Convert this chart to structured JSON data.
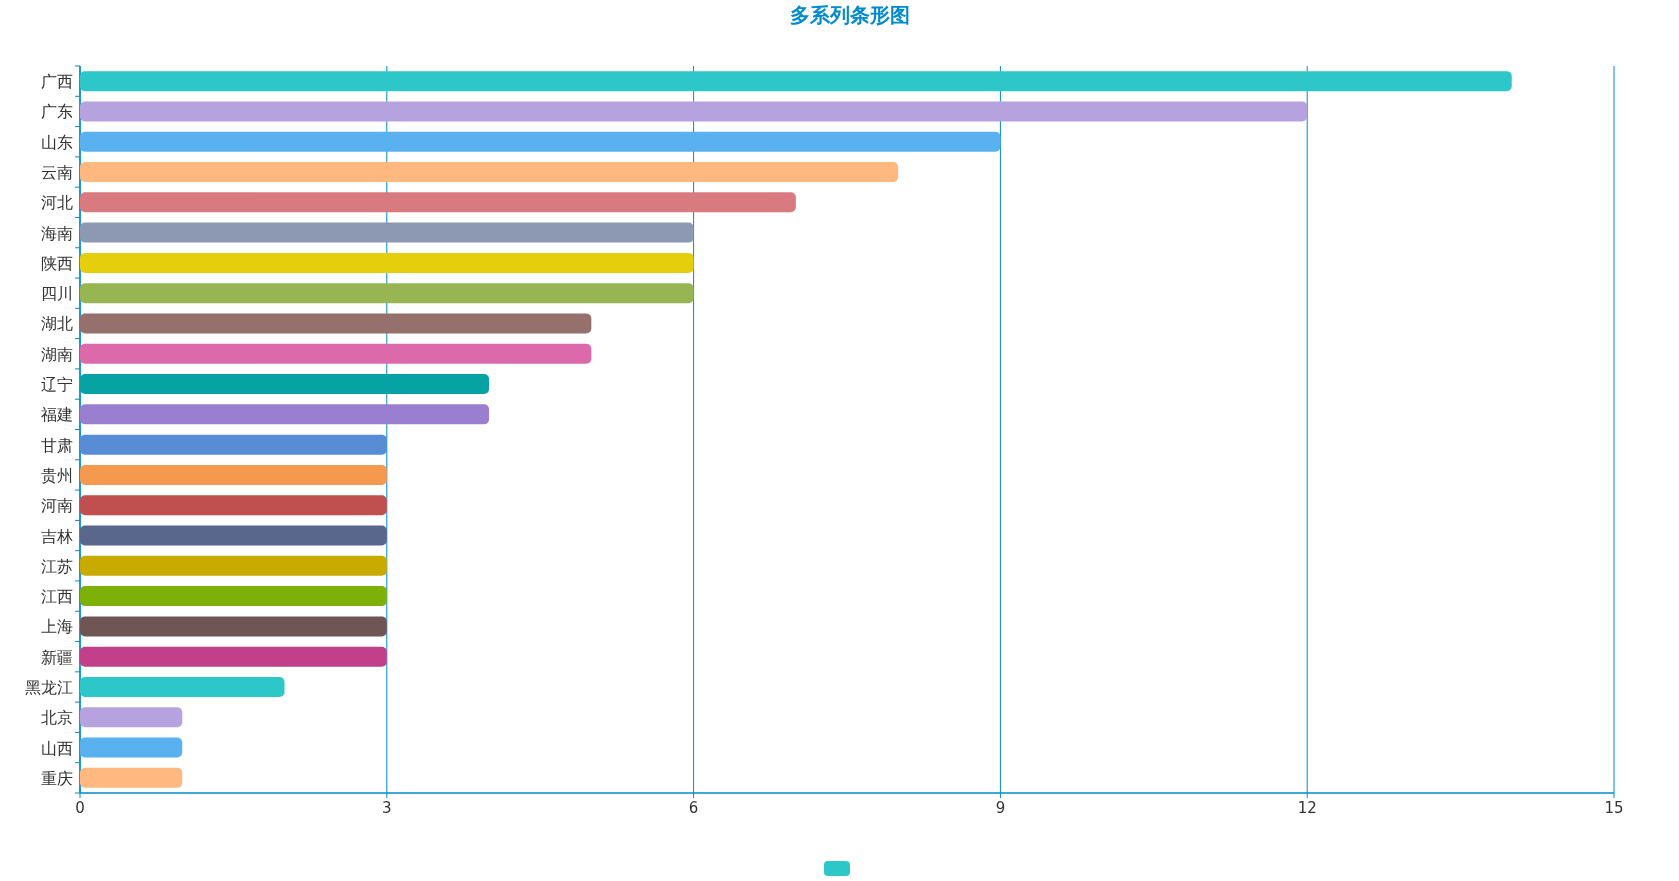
{
  "chart_data": {
    "type": "bar",
    "title": "多系列条形图",
    "orientation": "horizontal",
    "categories": [
      "广西",
      "广东",
      "山东",
      "云南",
      "河北",
      "海南",
      "陕西",
      "四川",
      "湖北",
      "湖南",
      "辽宁",
      "福建",
      "甘肃",
      "贵州",
      "河南",
      "吉林",
      "江苏",
      "江西",
      "上海",
      "新疆",
      "黑龙江",
      "北京",
      "山西",
      "重庆"
    ],
    "values": [
      14,
      12,
      9,
      8,
      7,
      6,
      6,
      6,
      5,
      5,
      4,
      4,
      3,
      3,
      3,
      3,
      3,
      3,
      3,
      3,
      2,
      1,
      1,
      1
    ],
    "colors": [
      "#2ec7c9",
      "#b6a2de",
      "#5ab1ef",
      "#ffb980",
      "#d87a80",
      "#8d98b3",
      "#e5cf0d",
      "#97b552",
      "#95706d",
      "#dc69aa",
      "#07a2a4",
      "#9a7fd1",
      "#588dd5",
      "#f5994e",
      "#c05050",
      "#59678c",
      "#c9ab00",
      "#7eb00a",
      "#6f5553",
      "#c14089",
      "#2ec7c9",
      "#b6a2de",
      "#5ab1ef",
      "#ffb980"
    ],
    "xlim": [
      0,
      15
    ],
    "xticks": [
      0,
      3,
      6,
      9,
      12,
      15
    ],
    "grid": "x"
  }
}
